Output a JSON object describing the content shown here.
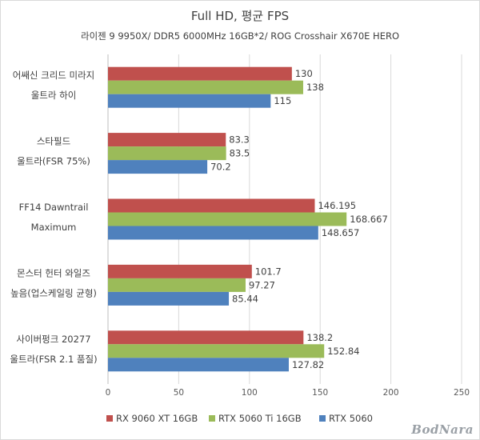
{
  "title": "Full HD, 평균 FPS",
  "subtitle": "라이젠 9 9950X/ DDR5 6000MHz 16GB*2/ ROG Crosshair X670E HERO",
  "watermark": "BodNara",
  "chart_data": {
    "type": "bar",
    "orientation": "horizontal",
    "categories": [
      [
        "어쌔신 크리드 미라지",
        "울트라 하이"
      ],
      [
        "스타필드",
        "울트라(FSR 75%)"
      ],
      [
        "FF14 Dawntrail",
        "Maximum"
      ],
      [
        "몬스터 헌터 와일즈",
        "높음(업스케일링 균형)"
      ],
      [
        "사이버펑크 20277",
        "울트라(FSR 2.1 품질)"
      ]
    ],
    "series": [
      {
        "name": "RX 9060 XT 16GB",
        "color": "#c0504d",
        "values": [
          130,
          83.3,
          146.195,
          101.7,
          138.2
        ],
        "labels": [
          "130",
          "83.3",
          "146.195",
          "101.7",
          "138.2"
        ]
      },
      {
        "name": "RTX 5060 Ti 16GB",
        "color": "#9bbb59",
        "values": [
          138,
          83.5,
          168.667,
          97.27,
          152.84
        ],
        "labels": [
          "138",
          "83.5",
          "168.667",
          "97.27",
          "152.84"
        ]
      },
      {
        "name": "RTX 5060",
        "color": "#4f81bd",
        "values": [
          115,
          70.2,
          148.657,
          85.44,
          127.82
        ],
        "labels": [
          "115",
          "70.2",
          "148.657",
          "85.44",
          "127.82"
        ]
      }
    ],
    "xlim": [
      0,
      250
    ],
    "xticks": [
      0,
      50,
      100,
      150,
      200,
      250
    ],
    "grid": true,
    "legend": "bottom"
  }
}
